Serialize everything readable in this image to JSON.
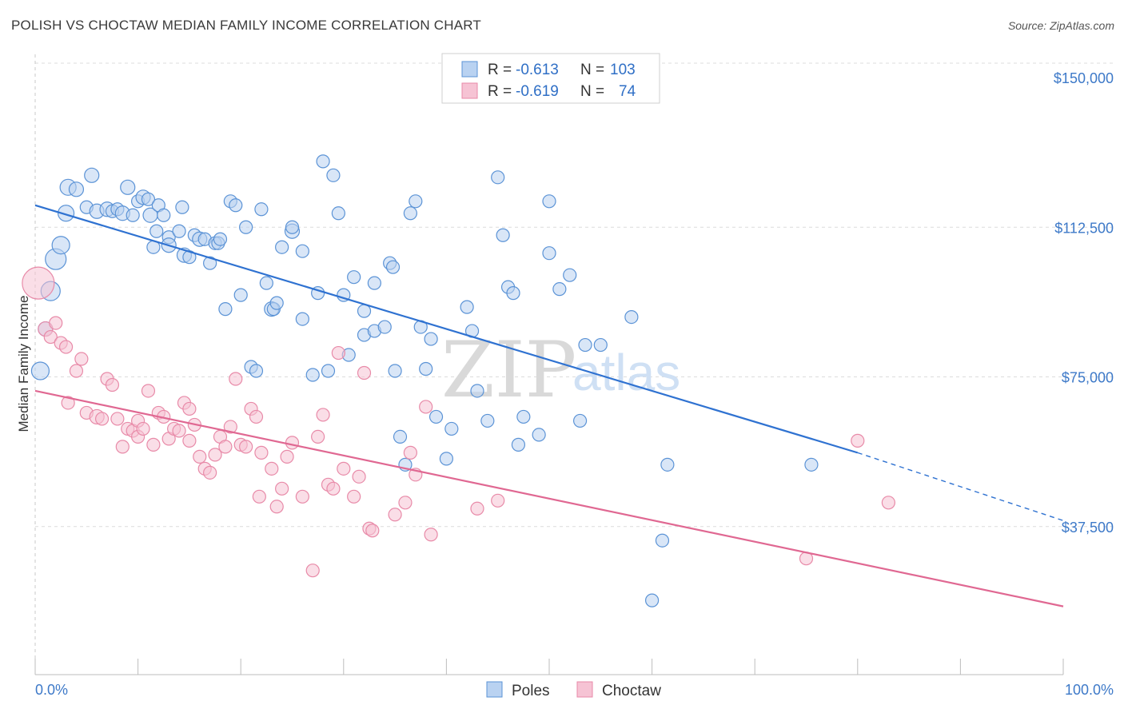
{
  "header": {
    "title": "POLISH VS CHOCTAW MEDIAN FAMILY INCOME CORRELATION CHART",
    "source": "Source: ZipAtlas.com"
  },
  "watermark": {
    "zip": "ZIP",
    "atlas": "atlas"
  },
  "colors": {
    "poles": "#5b93d6",
    "poles_fill": "#b9d2f1",
    "poles_line": "#2f72d1",
    "choctaw": "#e88aa8",
    "choctaw_fill": "#f6c3d4",
    "choctaw_line": "#e06892",
    "tick_text": "#3d79c8",
    "grid": "#dcdcdc"
  },
  "legend": {
    "rows": [
      {
        "r_label": "R =",
        "r_value": "-0.613",
        "n_label": "N =",
        "n_value": "103"
      },
      {
        "r_label": "R =",
        "r_value": "-0.619",
        "n_label": "N =",
        "n_value": "74"
      }
    ]
  },
  "chart_data": {
    "type": "scatter",
    "title": "POLISH VS CHOCTAW MEDIAN FAMILY INCOME CORRELATION CHART",
    "xlabel": "",
    "ylabel": "Median Family Income",
    "x_tick_labels": [
      "0.0%",
      "100.0%"
    ],
    "y_tick_labels": [
      "$150,000",
      "$112,500",
      "$75,000",
      "$37,500"
    ],
    "y_ticks": [
      150000,
      112500,
      75000,
      37500
    ],
    "xlim": [
      0,
      100
    ],
    "ylim": [
      0,
      155000
    ],
    "grid": true,
    "legend_position": "top-center",
    "series": [
      {
        "name": "Poles",
        "trend": {
          "x0": 0,
          "y0": 118000,
          "x1": 80,
          "y1": 56000,
          "dash_to_x": 100,
          "dash_to_y": 39000
        },
        "points": [
          [
            0.5,
            76500,
            22
          ],
          [
            1,
            87000,
            18
          ],
          [
            1.5,
            96500,
            24
          ],
          [
            2,
            104500,
            26
          ],
          [
            2.5,
            108000,
            22
          ],
          [
            3,
            116000,
            20
          ],
          [
            3.2,
            122500,
            20
          ],
          [
            4,
            122000,
            18
          ],
          [
            5,
            117500,
            16
          ],
          [
            5.5,
            125500,
            18
          ],
          [
            6,
            116500,
            18
          ],
          [
            7,
            117000,
            18
          ],
          [
            7.5,
            116500,
            16
          ],
          [
            8,
            117000,
            16
          ],
          [
            8.5,
            116000,
            18
          ],
          [
            9,
            122500,
            18
          ],
          [
            9.5,
            115500,
            16
          ],
          [
            10,
            119000,
            16
          ],
          [
            10.5,
            120000,
            18
          ],
          [
            11,
            119500,
            16
          ],
          [
            11.2,
            115500,
            18
          ],
          [
            11.5,
            107500,
            16
          ],
          [
            11.8,
            111500,
            16
          ],
          [
            12,
            118000,
            16
          ],
          [
            12.5,
            115500,
            16
          ],
          [
            13,
            110000,
            16
          ],
          [
            13,
            108000,
            18
          ],
          [
            14,
            111500,
            16
          ],
          [
            14.3,
            117500,
            16
          ],
          [
            14.5,
            105500,
            18
          ],
          [
            15,
            105000,
            16
          ],
          [
            15.5,
            110500,
            16
          ],
          [
            16,
            109500,
            18
          ],
          [
            16.5,
            109500,
            16
          ],
          [
            17,
            103500,
            16
          ],
          [
            17.5,
            108500,
            16
          ],
          [
            17.8,
            108500,
            16
          ],
          [
            18,
            109500,
            16
          ],
          [
            18.5,
            92000,
            16
          ],
          [
            19,
            119000,
            16
          ],
          [
            19.5,
            118000,
            16
          ],
          [
            20,
            95500,
            16
          ],
          [
            20.5,
            112500,
            16
          ],
          [
            21,
            77500,
            16
          ],
          [
            21.5,
            76500,
            16
          ],
          [
            22,
            117000,
            16
          ],
          [
            22.5,
            98500,
            16
          ],
          [
            23,
            92000,
            18
          ],
          [
            23.2,
            92000,
            16
          ],
          [
            23.5,
            93500,
            16
          ],
          [
            24,
            107500,
            16
          ],
          [
            25,
            111500,
            18
          ],
          [
            25,
            112500,
            16
          ],
          [
            26,
            89500,
            16
          ],
          [
            26,
            106500,
            16
          ],
          [
            27,
            75500,
            16
          ],
          [
            27.5,
            96000,
            16
          ],
          [
            28,
            129000,
            16
          ],
          [
            28.5,
            76500,
            16
          ],
          [
            29,
            125500,
            16
          ],
          [
            29.5,
            116000,
            16
          ],
          [
            30,
            95500,
            16
          ],
          [
            30.5,
            80500,
            16
          ],
          [
            31,
            100000,
            16
          ],
          [
            32,
            91500,
            16
          ],
          [
            32,
            85500,
            16
          ],
          [
            33,
            98500,
            16
          ],
          [
            33,
            86500,
            16
          ],
          [
            34,
            87500,
            16
          ],
          [
            34.5,
            103500,
            16
          ],
          [
            34.8,
            102500,
            16
          ],
          [
            35,
            76500,
            16
          ],
          [
            35.5,
            60000,
            16
          ],
          [
            36,
            53000,
            16
          ],
          [
            36.5,
            116000,
            16
          ],
          [
            37,
            119000,
            16
          ],
          [
            37.5,
            87500,
            16
          ],
          [
            38,
            77000,
            16
          ],
          [
            38.5,
            84500,
            16
          ],
          [
            39,
            65000,
            16
          ],
          [
            40,
            54500,
            16
          ],
          [
            40.5,
            62000,
            16
          ],
          [
            42,
            92500,
            16
          ],
          [
            42.5,
            86500,
            16
          ],
          [
            43,
            71500,
            16
          ],
          [
            44,
            64000,
            16
          ],
          [
            45,
            125000,
            16
          ],
          [
            45.5,
            110500,
            16
          ],
          [
            46,
            97500,
            16
          ],
          [
            46.5,
            96000,
            16
          ],
          [
            47,
            58000,
            16
          ],
          [
            47.5,
            65000,
            16
          ],
          [
            49,
            60500,
            16
          ],
          [
            50,
            106000,
            16
          ],
          [
            50,
            119000,
            16
          ],
          [
            51,
            97000,
            16
          ],
          [
            52,
            100500,
            16
          ],
          [
            53,
            64000,
            16
          ],
          [
            53.5,
            83000,
            16
          ],
          [
            55,
            83000,
            16
          ],
          [
            58,
            90000,
            16
          ],
          [
            60,
            19000,
            16
          ],
          [
            61,
            34000,
            16
          ],
          [
            61.5,
            53000,
            16
          ],
          [
            75.5,
            53000,
            16
          ]
        ]
      },
      {
        "name": "Choctaw",
        "trend": {
          "x0": 0,
          "y0": 71500,
          "x1": 100,
          "y1": 17500
        },
        "points": [
          [
            0.3,
            98500,
            40
          ],
          [
            1,
            87000,
            18
          ],
          [
            1.5,
            85000,
            16
          ],
          [
            2,
            88500,
            16
          ],
          [
            2.5,
            83500,
            16
          ],
          [
            3,
            82500,
            16
          ],
          [
            3.2,
            68500,
            16
          ],
          [
            4,
            76500,
            16
          ],
          [
            4.5,
            79500,
            16
          ],
          [
            5,
            66000,
            16
          ],
          [
            6,
            65000,
            18
          ],
          [
            6.5,
            64500,
            16
          ],
          [
            7,
            74500,
            16
          ],
          [
            7.5,
            73000,
            16
          ],
          [
            8,
            64500,
            16
          ],
          [
            8.5,
            57500,
            16
          ],
          [
            9,
            62000,
            16
          ],
          [
            9.5,
            61500,
            16
          ],
          [
            10,
            64000,
            16
          ],
          [
            10,
            60000,
            16
          ],
          [
            10.5,
            62000,
            16
          ],
          [
            11,
            71500,
            16
          ],
          [
            11.5,
            58000,
            16
          ],
          [
            12,
            66000,
            16
          ],
          [
            12.5,
            65000,
            16
          ],
          [
            13,
            59500,
            16
          ],
          [
            13.5,
            62000,
            16
          ],
          [
            14,
            61500,
            16
          ],
          [
            14.5,
            68500,
            16
          ],
          [
            15,
            67000,
            16
          ],
          [
            15,
            59000,
            16
          ],
          [
            15.5,
            63000,
            16
          ],
          [
            16,
            55000,
            16
          ],
          [
            16.5,
            52000,
            16
          ],
          [
            17,
            51000,
            16
          ],
          [
            17.5,
            55500,
            16
          ],
          [
            18,
            60000,
            16
          ],
          [
            18.5,
            57500,
            16
          ],
          [
            19,
            62500,
            16
          ],
          [
            19.5,
            74500,
            16
          ],
          [
            20,
            58000,
            16
          ],
          [
            20.5,
            57500,
            16
          ],
          [
            21,
            67000,
            16
          ],
          [
            21.5,
            65000,
            16
          ],
          [
            21.8,
            45000,
            16
          ],
          [
            22,
            56000,
            16
          ],
          [
            23,
            52000,
            16
          ],
          [
            23.5,
            42500,
            16
          ],
          [
            24,
            47000,
            16
          ],
          [
            24.5,
            55000,
            16
          ],
          [
            25,
            58500,
            16
          ],
          [
            26,
            45000,
            16
          ],
          [
            27,
            26500,
            16
          ],
          [
            27.5,
            60000,
            16
          ],
          [
            28,
            65500,
            16
          ],
          [
            28.5,
            48000,
            16
          ],
          [
            29,
            47000,
            16
          ],
          [
            29.5,
            81000,
            16
          ],
          [
            30,
            52000,
            16
          ],
          [
            31,
            45000,
            16
          ],
          [
            31.5,
            50000,
            16
          ],
          [
            32,
            76000,
            16
          ],
          [
            32.5,
            37000,
            16
          ],
          [
            32.8,
            36500,
            16
          ],
          [
            35,
            40500,
            16
          ],
          [
            36,
            43500,
            16
          ],
          [
            36.5,
            56000,
            16
          ],
          [
            37,
            50500,
            16
          ],
          [
            38,
            67500,
            16
          ],
          [
            38.5,
            35500,
            16
          ],
          [
            43,
            42000,
            16
          ],
          [
            45,
            44000,
            16
          ],
          [
            75,
            29500,
            16
          ],
          [
            80,
            59000,
            16
          ],
          [
            83,
            43500,
            16
          ]
        ]
      }
    ]
  },
  "bottom_legend": {
    "items": [
      {
        "label": "Poles"
      },
      {
        "label": "Choctaw"
      }
    ]
  }
}
